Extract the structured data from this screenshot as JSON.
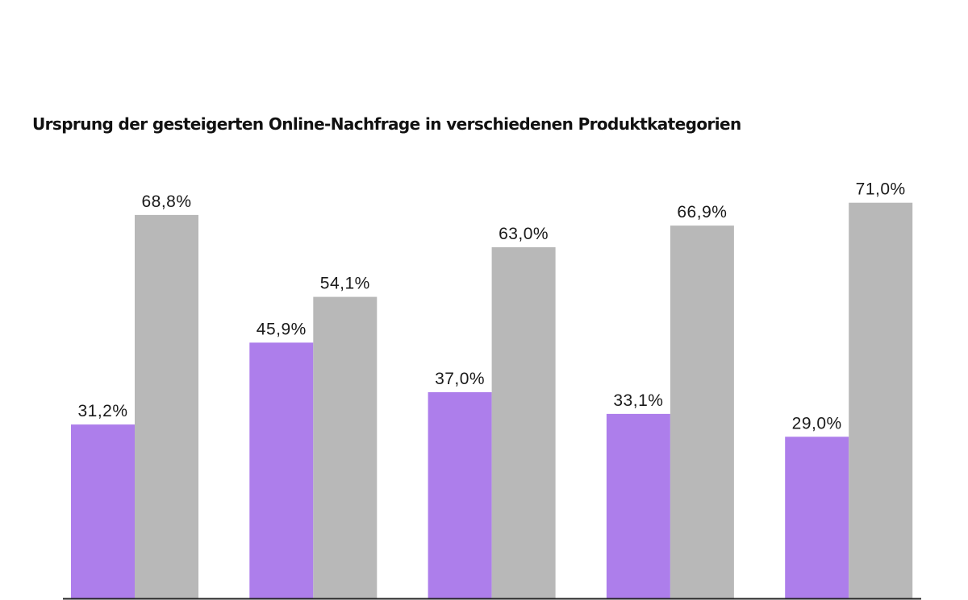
{
  "chart_data": {
    "type": "bar",
    "title": "Ursprung der gesteigerten Online-Nachfrage in verschiedenen Produktkategorien",
    "xlabel": "",
    "ylabel": "",
    "ylim": [
      0,
      100
    ],
    "grid": false,
    "categories": [
      "",
      "",
      "",
      "",
      ""
    ],
    "series": [
      {
        "color": "#ad7eeb",
        "values": [
          31.2,
          45.9,
          37.0,
          33.1,
          29.0
        ],
        "labels": [
          "31,2%",
          "45,9%",
          "37,0%",
          "33,1%",
          "29,0%"
        ]
      },
      {
        "color": "#b8b8b8",
        "values": [
          68.8,
          54.1,
          63.0,
          66.9,
          71.0
        ],
        "labels": [
          "68,8%",
          "54,1%",
          "63,0%",
          "66,9%",
          "71,0%"
        ]
      }
    ]
  },
  "colors": {
    "axis": "#222222",
    "label_text": "#1a1a1a"
  }
}
